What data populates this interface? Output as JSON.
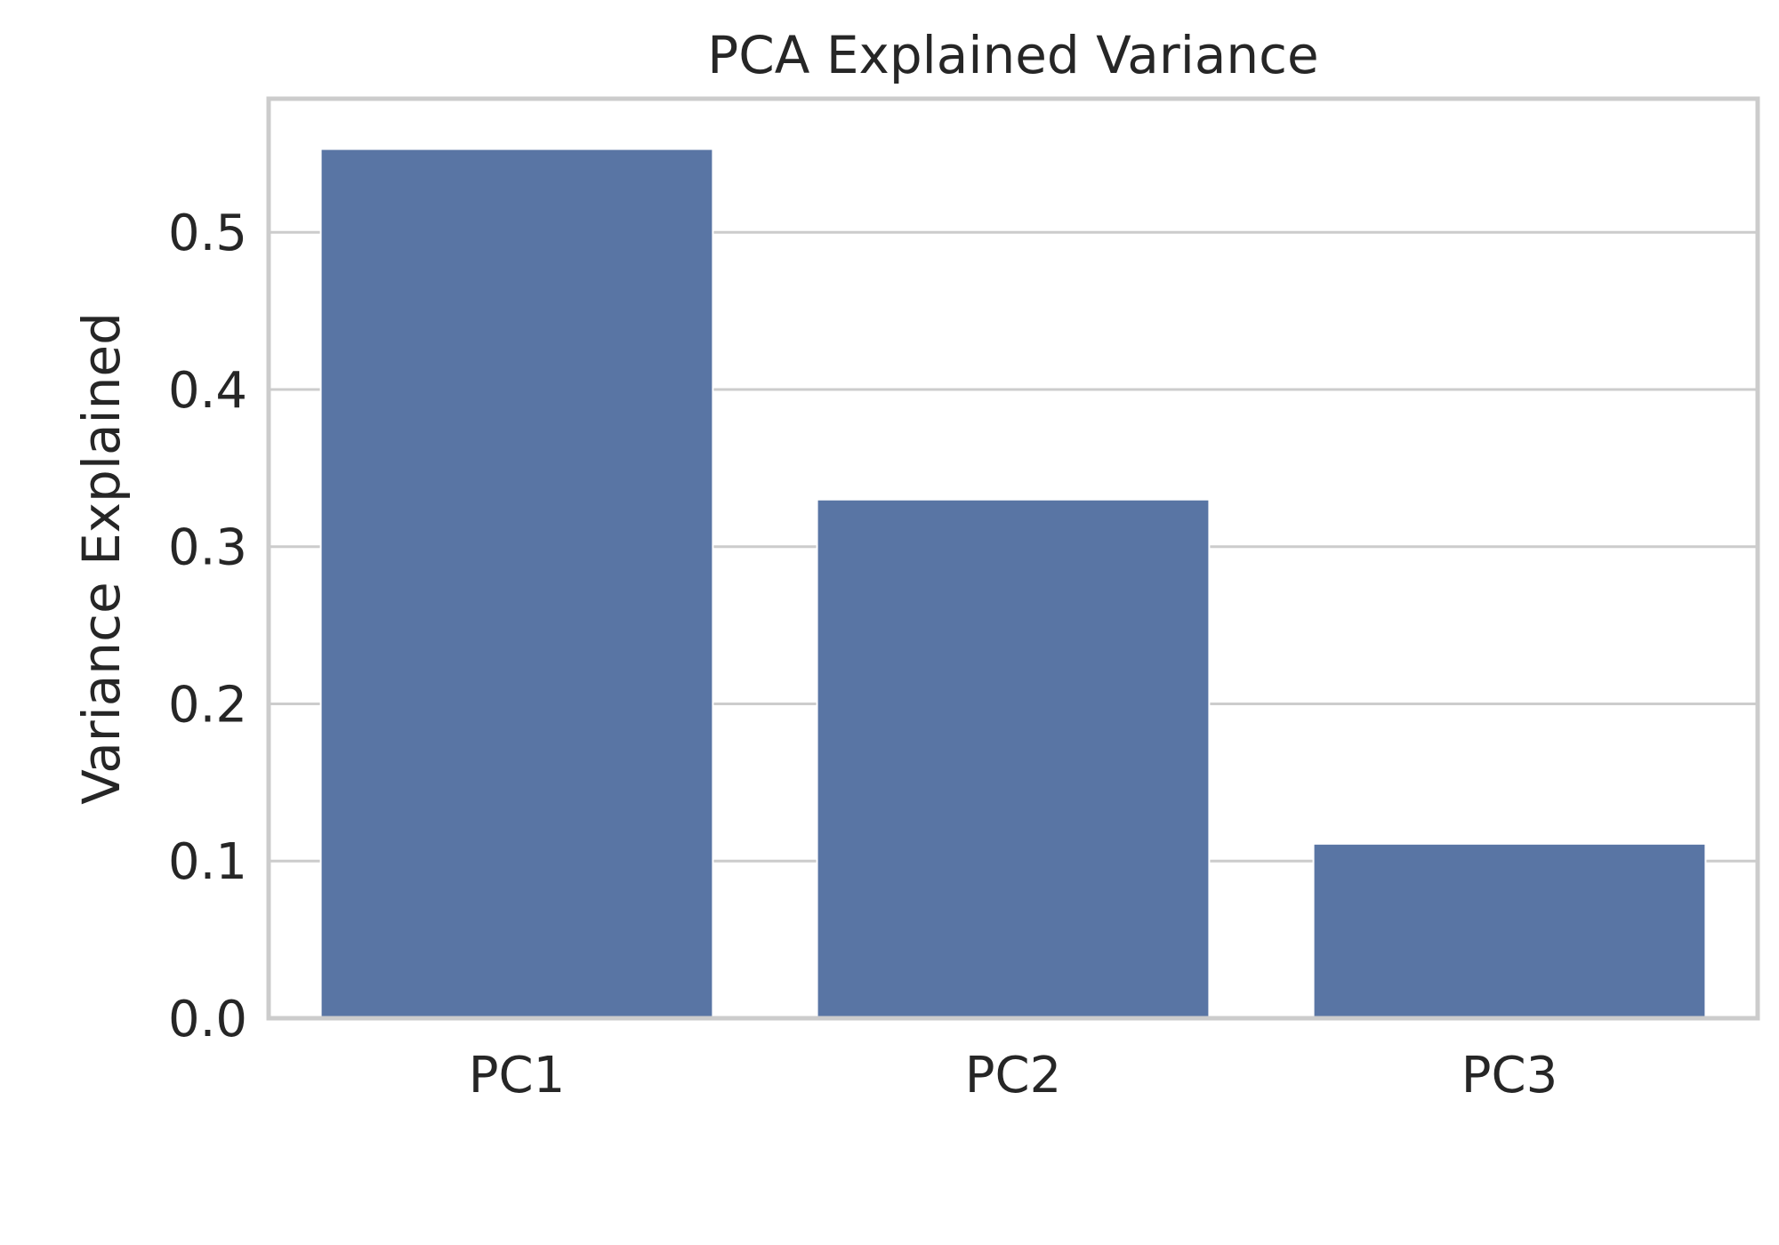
{
  "chart_data": {
    "type": "bar",
    "title": "PCA Explained Variance",
    "xlabel": "",
    "ylabel": "Variance Explained",
    "categories": [
      "PC1",
      "PC2",
      "PC3"
    ],
    "values": [
      0.553,
      0.33,
      0.111
    ],
    "ylim": [
      0,
      0.585
    ],
    "yticks": [
      0.0,
      0.1,
      0.2,
      0.3,
      0.4,
      0.5
    ],
    "ytick_labels": [
      "0.0",
      "0.1",
      "0.2",
      "0.3",
      "0.4",
      "0.5"
    ],
    "grid": true,
    "legend": "none",
    "bar_color": "#5975a4",
    "grid_color": "#cccccc",
    "frame_color": "#cccccc",
    "text_color": "#262626"
  }
}
